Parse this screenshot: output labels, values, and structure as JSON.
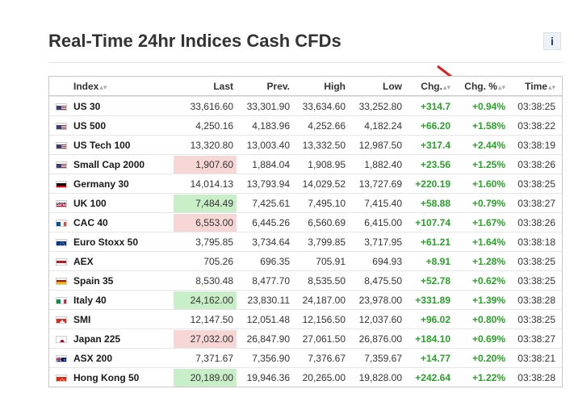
{
  "title": "Real-Time 24hr Indices Cash CFDs",
  "info_label": "i",
  "columns": {
    "index": "Index",
    "last": "Last",
    "prev": "Prev.",
    "high": "High",
    "low": "Low",
    "chg": "Chg.",
    "pct": "Chg. %",
    "time": "Time"
  },
  "rows": [
    {
      "flag": "us-flag-icon",
      "name": "US 30",
      "last": "33,616.60",
      "prev": "33,301.90",
      "high": "33,634.60",
      "low": "33,252.80",
      "chg": "+314.7",
      "pct": "+0.94%",
      "time": "03:38:25",
      "highlight": ""
    },
    {
      "flag": "us-flag-icon",
      "name": "US 500",
      "last": "4,250.16",
      "prev": "4,183.96",
      "high": "4,252.66",
      "low": "4,182.24",
      "chg": "+66.20",
      "pct": "+1.58%",
      "time": "03:38:22",
      "highlight": ""
    },
    {
      "flag": "us-flag-icon",
      "name": "US Tech 100",
      "last": "13,320.80",
      "prev": "13,003.40",
      "high": "13,332.50",
      "low": "12,987.50",
      "chg": "+317.4",
      "pct": "+2.44%",
      "time": "03:38:19",
      "highlight": ""
    },
    {
      "flag": "us-flag-icon",
      "name": "Small Cap 2000",
      "last": "1,907.60",
      "prev": "1,884.04",
      "high": "1,908.95",
      "low": "1,882.40",
      "chg": "+23.56",
      "pct": "+1.25%",
      "time": "03:38:26",
      "highlight": "down"
    },
    {
      "flag": "de-flag-icon",
      "name": "Germany 30",
      "last": "14,014.13",
      "prev": "13,793.94",
      "high": "14,029.52",
      "low": "13,727.69",
      "chg": "+220.19",
      "pct": "+1.60%",
      "time": "03:38:25",
      "highlight": ""
    },
    {
      "flag": "uk-flag-icon",
      "name": "UK 100",
      "last": "7,484.49",
      "prev": "7,425.61",
      "high": "7,495.10",
      "low": "7,415.40",
      "chg": "+58.88",
      "pct": "+0.79%",
      "time": "03:38:27",
      "highlight": "up"
    },
    {
      "flag": "fr-flag-icon",
      "name": "CAC 40",
      "last": "6,553.00",
      "prev": "6,445.26",
      "high": "6,560.69",
      "low": "6,415.00",
      "chg": "+107.74",
      "pct": "+1.67%",
      "time": "03:38:26",
      "highlight": "down"
    },
    {
      "flag": "eu-flag-icon",
      "name": "Euro Stoxx 50",
      "last": "3,795.85",
      "prev": "3,734.64",
      "high": "3,799.85",
      "low": "3,717.95",
      "chg": "+61.21",
      "pct": "+1.64%",
      "time": "03:38:18",
      "highlight": ""
    },
    {
      "flag": "nl-flag-icon",
      "name": "AEX",
      "last": "705.26",
      "prev": "696.35",
      "high": "705.91",
      "low": "694.93",
      "chg": "+8.91",
      "pct": "+1.28%",
      "time": "03:38:25",
      "highlight": ""
    },
    {
      "flag": "es-flag-icon",
      "name": "Spain 35",
      "last": "8,530.48",
      "prev": "8,477.70",
      "high": "8,535.50",
      "low": "8,475.50",
      "chg": "+52.78",
      "pct": "+0.62%",
      "time": "03:38:25",
      "highlight": ""
    },
    {
      "flag": "it-flag-icon",
      "name": "Italy 40",
      "last": "24,162.00",
      "prev": "23,830.11",
      "high": "24,187.00",
      "low": "23,978.00",
      "chg": "+331.89",
      "pct": "+1.39%",
      "time": "03:38:28",
      "highlight": "up"
    },
    {
      "flag": "ch-flag-icon",
      "name": "SMI",
      "last": "12,147.50",
      "prev": "12,051.48",
      "high": "12,156.50",
      "low": "12,037.60",
      "chg": "+96.02",
      "pct": "+0.80%",
      "time": "03:38:25",
      "highlight": ""
    },
    {
      "flag": "jp-flag-icon",
      "name": "Japan 225",
      "last": "27,032.00",
      "prev": "26,847.90",
      "high": "27,061.50",
      "low": "26,876.00",
      "chg": "+184.10",
      "pct": "+0.69%",
      "time": "03:38:27",
      "highlight": "down"
    },
    {
      "flag": "au-flag-icon",
      "name": "ASX 200",
      "last": "7,371.67",
      "prev": "7,356.90",
      "high": "7,376.67",
      "low": "7,359.67",
      "chg": "+14.77",
      "pct": "+0.20%",
      "time": "03:38:21",
      "highlight": ""
    },
    {
      "flag": "hk-flag-icon",
      "name": "Hong Kong 50",
      "last": "20,189.00",
      "prev": "19,946.36",
      "high": "20,265.00",
      "low": "19,828.00",
      "chg": "+242.64",
      "pct": "+1.22%",
      "time": "03:38:28",
      "highlight": "up"
    }
  ]
}
